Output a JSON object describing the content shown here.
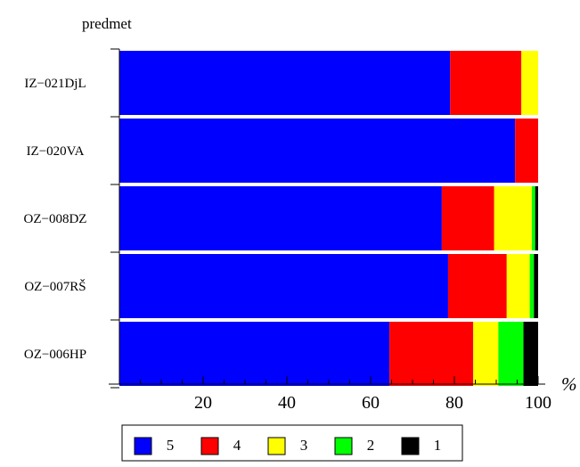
{
  "chart_data": {
    "type": "bar",
    "orientation": "horizontal",
    "stacked": true,
    "ylabel": "predmet",
    "xlabel": "%",
    "xlim": [
      0,
      100
    ],
    "xticks": [
      20,
      40,
      60,
      80,
      100
    ],
    "categories": [
      "IZ−021DjL",
      "IZ−020VA",
      "OZ−008DZ",
      "OZ−007RŠ",
      "OZ−006HP"
    ],
    "series": [
      {
        "name": "5",
        "color": "#0000ff",
        "values": [
          79.0,
          94.5,
          77.0,
          78.5,
          64.5
        ]
      },
      {
        "name": "4",
        "color": "#ff0000",
        "values": [
          17.0,
          5.5,
          12.5,
          14.0,
          20.0
        ]
      },
      {
        "name": "3",
        "color": "#ffff00",
        "values": [
          4.0,
          0.0,
          9.0,
          5.5,
          6.0
        ]
      },
      {
        "name": "2",
        "color": "#00ff00",
        "values": [
          0.0,
          0.0,
          0.8,
          1.0,
          6.0
        ]
      },
      {
        "name": "1",
        "color": "#000000",
        "values": [
          0.0,
          0.0,
          0.7,
          1.0,
          3.5
        ]
      }
    ],
    "legend_position": "bottom"
  }
}
